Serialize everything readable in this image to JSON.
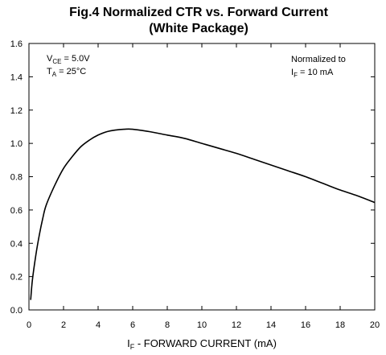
{
  "chart_data": {
    "type": "line",
    "title": "Fig.4  Normalized CTR vs. Forward Current",
    "subtitle": "(White Package)",
    "xlabel": {
      "main": "I",
      "sub": "F",
      "rest": " - FORWARD CURRENT (mA)"
    },
    "ylabel": "",
    "xlim": [
      0,
      20
    ],
    "ylim": [
      0,
      1.6
    ],
    "x_ticks": [
      0,
      2,
      4,
      6,
      8,
      10,
      12,
      14,
      16,
      18,
      20
    ],
    "y_ticks": [
      0.0,
      0.2,
      0.4,
      0.6,
      0.8,
      1.0,
      1.2,
      1.4,
      1.6
    ],
    "y_tick_labels": [
      "0.0",
      "0.2",
      "0.4",
      "0.6",
      "0.8",
      "1.0",
      "1.2",
      "1.4",
      "1.6"
    ],
    "grid": false,
    "annotations": {
      "left": {
        "line1": {
          "main": "V",
          "sub": "CE",
          "rest": " = 5.0V"
        },
        "line2": {
          "main": "T",
          "sub": "A",
          "rest": " = 25°C"
        }
      },
      "right": {
        "line1": "Normalized to",
        "line2": {
          "main": "I",
          "sub": "F",
          "rest": " = 10 mA"
        }
      }
    },
    "series": [
      {
        "x": [
          0.1,
          0.2,
          0.4,
          0.6,
          0.8,
          1.0,
          1.5,
          2.0,
          2.5,
          3.0,
          3.5,
          4.0,
          4.5,
          5.0,
          5.5,
          6.0,
          7.0,
          8.0,
          9.0,
          10.0,
          11.0,
          12.0,
          13.0,
          14.0,
          15.0,
          16.0,
          17.0,
          18.0,
          19.0,
          20.0
        ],
        "values": [
          0.06,
          0.18,
          0.33,
          0.45,
          0.55,
          0.63,
          0.75,
          0.85,
          0.92,
          0.98,
          1.02,
          1.05,
          1.07,
          1.08,
          1.085,
          1.085,
          1.07,
          1.05,
          1.03,
          1.0,
          0.97,
          0.94,
          0.905,
          0.87,
          0.835,
          0.8,
          0.76,
          0.72,
          0.685,
          0.645
        ]
      }
    ]
  }
}
